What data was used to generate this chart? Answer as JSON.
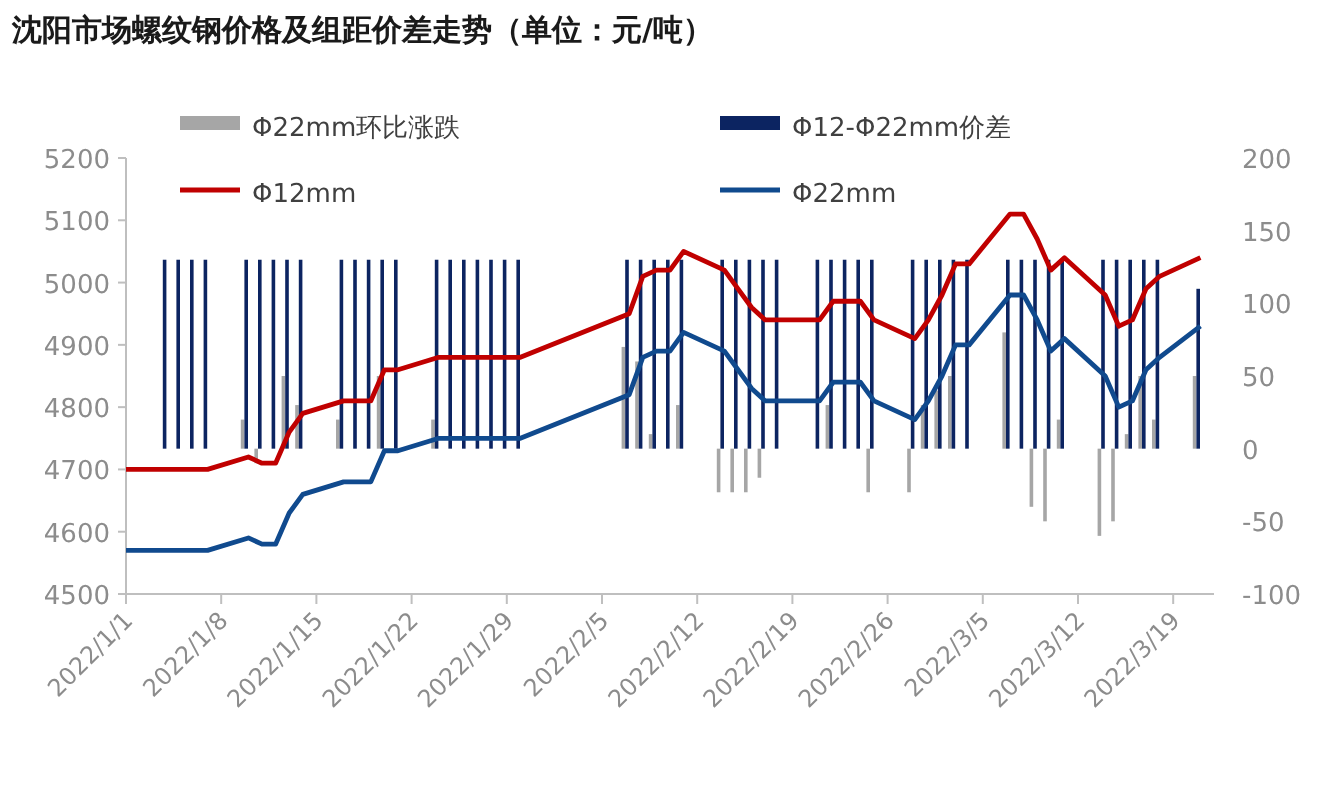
{
  "chart_data": {
    "type": "bar",
    "title": "沈阳市场螺纹钢价格及组距价差走势（单位：元/吨）",
    "x": [
      "2022-01-01",
      "2022-01-04",
      "2022-01-05",
      "2022-01-06",
      "2022-01-07",
      "2022-01-10",
      "2022-01-11",
      "2022-01-12",
      "2022-01-13",
      "2022-01-14",
      "2022-01-17",
      "2022-01-18",
      "2022-01-19",
      "2022-01-20",
      "2022-01-21",
      "2022-01-24",
      "2022-01-25",
      "2022-01-26",
      "2022-01-27",
      "2022-01-28",
      "2022-01-29",
      "2022-01-30",
      "2022-02-07",
      "2022-02-08",
      "2022-02-09",
      "2022-02-10",
      "2022-02-11",
      "2022-02-14",
      "2022-02-15",
      "2022-02-16",
      "2022-02-17",
      "2022-02-18",
      "2022-02-21",
      "2022-02-22",
      "2022-02-23",
      "2022-02-24",
      "2022-02-25",
      "2022-02-28",
      "2022-03-01",
      "2022-03-02",
      "2022-03-03",
      "2022-03-04",
      "2022-03-07",
      "2022-03-08",
      "2022-03-09",
      "2022-03-10",
      "2022-03-11",
      "2022-03-14",
      "2022-03-15",
      "2022-03-16",
      "2022-03-17",
      "2022-03-18",
      "2022-03-21"
    ],
    "series": [
      {
        "name": "Φ22mm环比涨跌",
        "axis": "y2",
        "color": "#a6a6a6",
        "values": [
          null,
          0,
          0,
          0,
          0,
          20,
          -10,
          0,
          50,
          30,
          20,
          0,
          0,
          50,
          0,
          20,
          0,
          0,
          0,
          0,
          0,
          0,
          70,
          60,
          10,
          0,
          30,
          -30,
          -30,
          -30,
          -20,
          0,
          0,
          30,
          0,
          0,
          -30,
          -30,
          30,
          40,
          50,
          0,
          80,
          0,
          -40,
          -50,
          20,
          -60,
          -50,
          10,
          50,
          20,
          50
        ]
      },
      {
        "name": "Φ12-Φ22mm价差",
        "axis": "y2",
        "color": "#0c2461",
        "values": [
          null,
          130,
          130,
          130,
          130,
          130,
          130,
          130,
          130,
          130,
          130,
          130,
          130,
          130,
          130,
          130,
          130,
          130,
          130,
          130,
          130,
          130,
          130,
          130,
          130,
          130,
          130,
          130,
          130,
          130,
          130,
          130,
          130,
          130,
          130,
          130,
          130,
          130,
          130,
          130,
          130,
          130,
          130,
          130,
          130,
          130,
          130,
          130,
          130,
          130,
          130,
          130,
          110
        ]
      },
      {
        "name": "Φ12mm",
        "type": "line",
        "color": "#c00000",
        "values": [
          4700,
          4700,
          4700,
          4700,
          4700,
          4720,
          4710,
          4710,
          4760,
          4790,
          4810,
          4810,
          4810,
          4860,
          4860,
          4880,
          4880,
          4880,
          4880,
          4880,
          4880,
          4880,
          4950,
          5010,
          5020,
          5020,
          5050,
          5020,
          4990,
          4960,
          4940,
          4940,
          4940,
          4970,
          4970,
          4970,
          4940,
          4910,
          4940,
          4980,
          5030,
          5030,
          5110,
          5110,
          5070,
          5020,
          5040,
          4980,
          4930,
          4940,
          4990,
          5010,
          5040
        ]
      },
      {
        "name": "Φ22mm",
        "type": "line",
        "color": "#104a8e",
        "values": [
          4570,
          4570,
          4570,
          4570,
          4570,
          4590,
          4580,
          4580,
          4630,
          4660,
          4680,
          4680,
          4680,
          4730,
          4730,
          4750,
          4750,
          4750,
          4750,
          4750,
          4750,
          4750,
          4820,
          4880,
          4890,
          4890,
          4920,
          4890,
          4860,
          4830,
          4810,
          4810,
          4810,
          4840,
          4840,
          4840,
          4810,
          4780,
          4810,
          4850,
          4900,
          4900,
          4980,
          4980,
          4940,
          4890,
          4910,
          4850,
          4800,
          4810,
          4860,
          4880,
          4930
        ]
      }
    ],
    "xlim": [
      "2022-01-01",
      "2022-03-22"
    ],
    "xticks": [
      {
        "value": "2022-01-01",
        "label": "2022/1/1"
      },
      {
        "value": "2022-01-08",
        "label": "2022/1/8"
      },
      {
        "value": "2022-01-15",
        "label": "2022/1/15"
      },
      {
        "value": "2022-01-22",
        "label": "2022/1/22"
      },
      {
        "value": "2022-01-29",
        "label": "2022/1/29"
      },
      {
        "value": "2022-02-05",
        "label": "2022/2/5"
      },
      {
        "value": "2022-02-12",
        "label": "2022/2/12"
      },
      {
        "value": "2022-02-19",
        "label": "2022/2/19"
      },
      {
        "value": "2022-02-26",
        "label": "2022/2/26"
      },
      {
        "value": "2022-03-05",
        "label": "2022/3/5"
      },
      {
        "value": "2022-03-12",
        "label": "2022/3/12"
      },
      {
        "value": "2022-03-19",
        "label": "2022/3/19"
      }
    ],
    "ylim": [
      4500,
      5200
    ],
    "yticks": [
      4500,
      4600,
      4700,
      4800,
      4900,
      5000,
      5100,
      5200
    ],
    "y2lim": [
      -100,
      200
    ],
    "y2ticks": [
      -100,
      -50,
      0,
      50,
      100,
      150,
      200
    ],
    "legend": "top",
    "grid": false
  }
}
